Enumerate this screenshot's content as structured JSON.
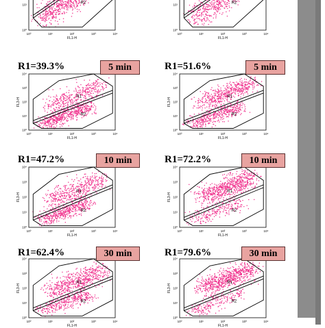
{
  "axis": {
    "xlabel": "FL1-H",
    "ylabel": "FL3-H",
    "ticks": [
      "10⁰",
      "10¹",
      "10²",
      "10³",
      "10⁴"
    ]
  },
  "gates": {
    "r1": "R1",
    "r2": "R2"
  },
  "colors": {
    "dots": "#f0358f",
    "badge": "#e8a3a0",
    "arrow": "#8c8c8c"
  },
  "panels": [
    {
      "id": "r0c0",
      "r1_text": "",
      "time": ""
    },
    {
      "id": "r0c1",
      "r1_text": "",
      "time": ""
    },
    {
      "id": "r1c0",
      "r1_text": "R1=39.3%",
      "time": "5 min"
    },
    {
      "id": "r1c1",
      "r1_text": "R1=51.6%",
      "time": "5 min"
    },
    {
      "id": "r2c0",
      "r1_text": "R1=47.2%",
      "time": "10 min"
    },
    {
      "id": "r2c1",
      "r1_text": "R1=72.2%",
      "time": "10 min"
    },
    {
      "id": "r3c0",
      "r1_text": "R1=62.4%",
      "time": "30 min"
    },
    {
      "id": "r3c1",
      "r1_text": "R1=79.6%",
      "time": "30 min"
    }
  ],
  "chart_data": [
    {
      "type": "scatter",
      "title": "",
      "xlabel": "FL1-H",
      "ylabel": "FL3-H",
      "xscale": "log",
      "yscale": "log",
      "xlim": [
        1,
        10000
      ],
      "ylim": [
        1,
        10000
      ],
      "gates": [
        "R1",
        "R2"
      ]
    },
    {
      "type": "scatter",
      "title": "",
      "xlabel": "FL1-H",
      "ylabel": "FL3-H",
      "xscale": "log",
      "yscale": "log",
      "xlim": [
        1,
        10000
      ],
      "ylim": [
        1,
        10000
      ],
      "gates": [
        "R1",
        "R2"
      ]
    },
    {
      "type": "scatter",
      "title": "5 min",
      "annotation": "R1=39.3%",
      "R1_percent": 39.3,
      "xlabel": "FL1-H",
      "ylabel": "FL3-H",
      "xscale": "log",
      "yscale": "log",
      "xlim": [
        1,
        10000
      ],
      "ylim": [
        1,
        10000
      ],
      "gates": [
        "R1",
        "R2"
      ]
    },
    {
      "type": "scatter",
      "title": "5 min",
      "annotation": "R1=51.6%",
      "R1_percent": 51.6,
      "xlabel": "FL1-H",
      "ylabel": "FL3-H",
      "xscale": "log",
      "yscale": "log",
      "xlim": [
        1,
        10000
      ],
      "ylim": [
        1,
        10000
      ],
      "gates": [
        "R1",
        "R2"
      ]
    },
    {
      "type": "scatter",
      "title": "10 min",
      "annotation": "R1=47.2%",
      "R1_percent": 47.2,
      "xlabel": "FL1-H",
      "ylabel": "FL3-H",
      "xscale": "log",
      "yscale": "log",
      "xlim": [
        1,
        10000
      ],
      "ylim": [
        1,
        10000
      ],
      "gates": [
        "R1",
        "R2"
      ]
    },
    {
      "type": "scatter",
      "title": "10 min",
      "annotation": "R1=72.2%",
      "R1_percent": 72.2,
      "xlabel": "FL1-H",
      "ylabel": "FL3-H",
      "xscale": "log",
      "yscale": "log",
      "xlim": [
        1,
        10000
      ],
      "ylim": [
        1,
        10000
      ],
      "gates": [
        "R1",
        "R2"
      ]
    },
    {
      "type": "scatter",
      "title": "30 min",
      "annotation": "R1=62.4%",
      "R1_percent": 62.4,
      "xlabel": "FL1-H",
      "ylabel": "FL3-H",
      "xscale": "log",
      "yscale": "log",
      "xlim": [
        1,
        10000
      ],
      "ylim": [
        1,
        10000
      ],
      "gates": [
        "R1",
        "R2"
      ]
    },
    {
      "type": "scatter",
      "title": "30 min",
      "annotation": "R1=79.6%",
      "R1_percent": 79.6,
      "xlabel": "FL1-H",
      "ylabel": "FL3-H",
      "xscale": "log",
      "yscale": "log",
      "xlim": [
        1,
        10000
      ],
      "ylim": [
        1,
        10000
      ],
      "gates": [
        "R1",
        "R2"
      ]
    }
  ]
}
